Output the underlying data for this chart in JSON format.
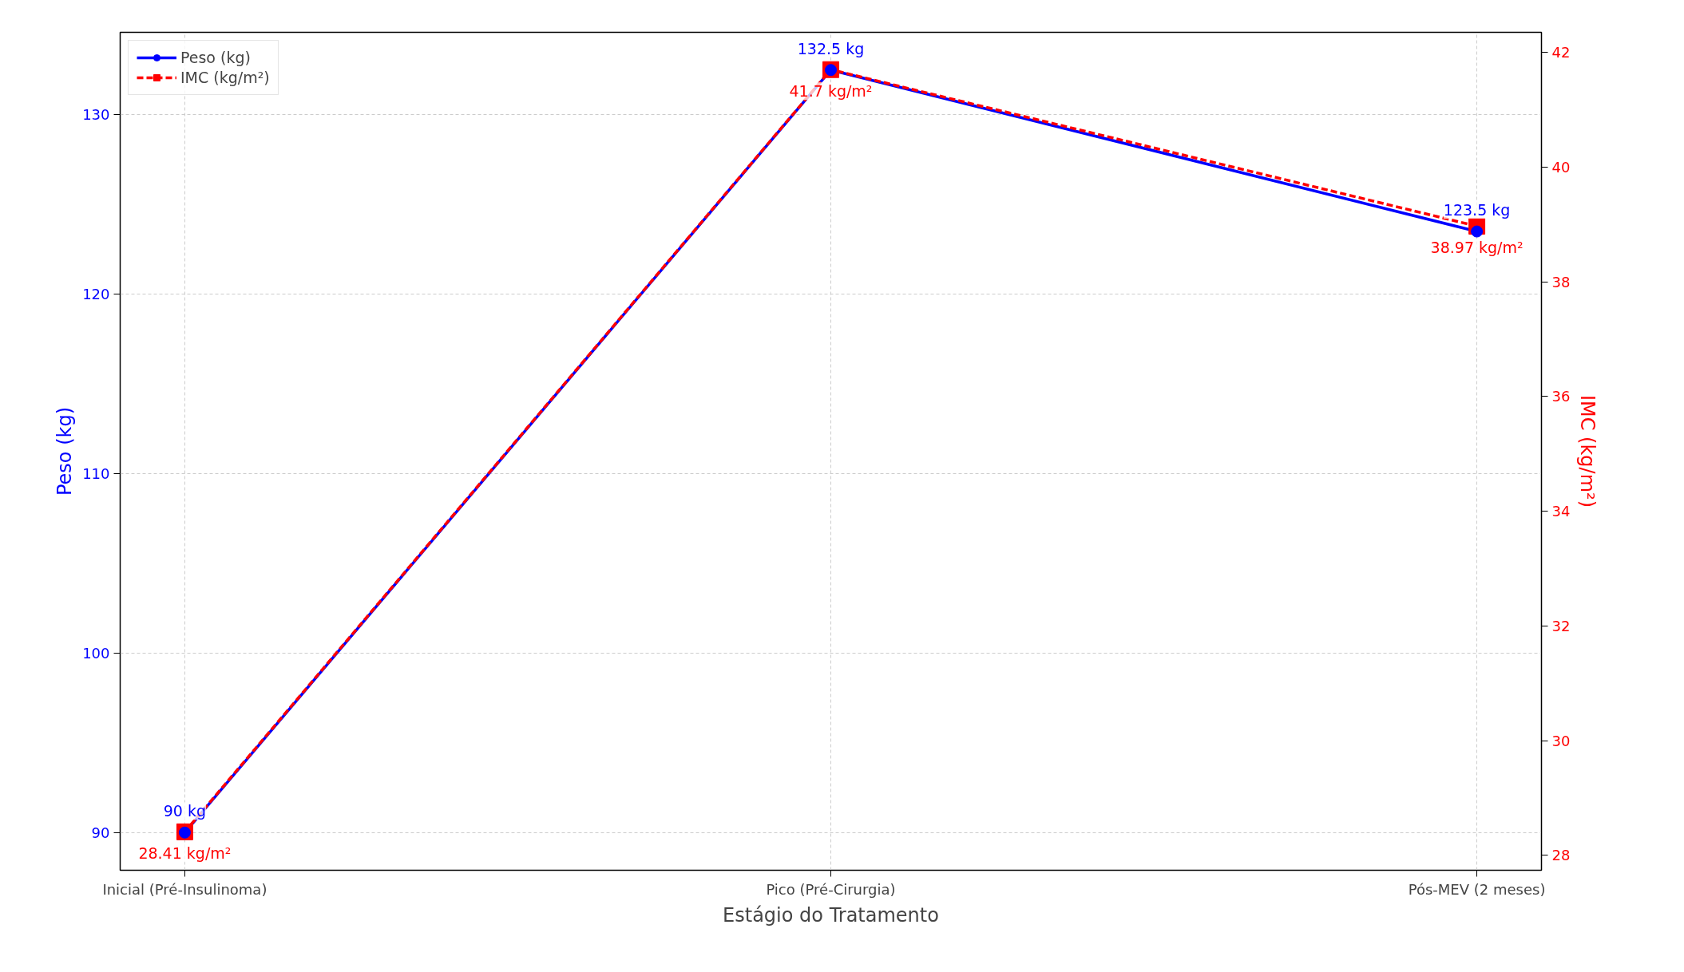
{
  "chart_data": {
    "type": "line",
    "xlabel": "Estágio do Tratamento",
    "ylabel": "Peso (kg)",
    "y2label": "IMC (kg/m²)",
    "categories": [
      "Inicial (Pré-Insulinoma)",
      "Pico (Pré-Cirurgia)",
      "Pós-MEV (2 meses)"
    ],
    "series": [
      {
        "name": "Peso (kg)",
        "color": "#0000ff",
        "values": [
          90,
          132.5,
          123.5
        ],
        "marker": "circle",
        "line_style": "solid",
        "value_labels": [
          "90 kg",
          "132.5 kg",
          "123.5 kg"
        ]
      },
      {
        "name": "IMC (kg/m²)",
        "color": "#ff0000",
        "values": [
          28.41,
          41.7,
          38.97
        ],
        "marker": "square",
        "line_style": "dashed",
        "axis": "y2",
        "value_labels": [
          "28.41 kg/m²",
          "41.7 kg/m²",
          "38.97 kg/m²"
        ]
      }
    ],
    "ylim": [
      87.9,
      134.6
    ],
    "yticks": [
      90,
      100,
      110,
      120,
      130
    ],
    "y2lim": [
      27.74,
      42.35
    ],
    "y2ticks": [
      28,
      30,
      32,
      34,
      36,
      38,
      40,
      42
    ],
    "grid": true,
    "legend": "top left"
  }
}
